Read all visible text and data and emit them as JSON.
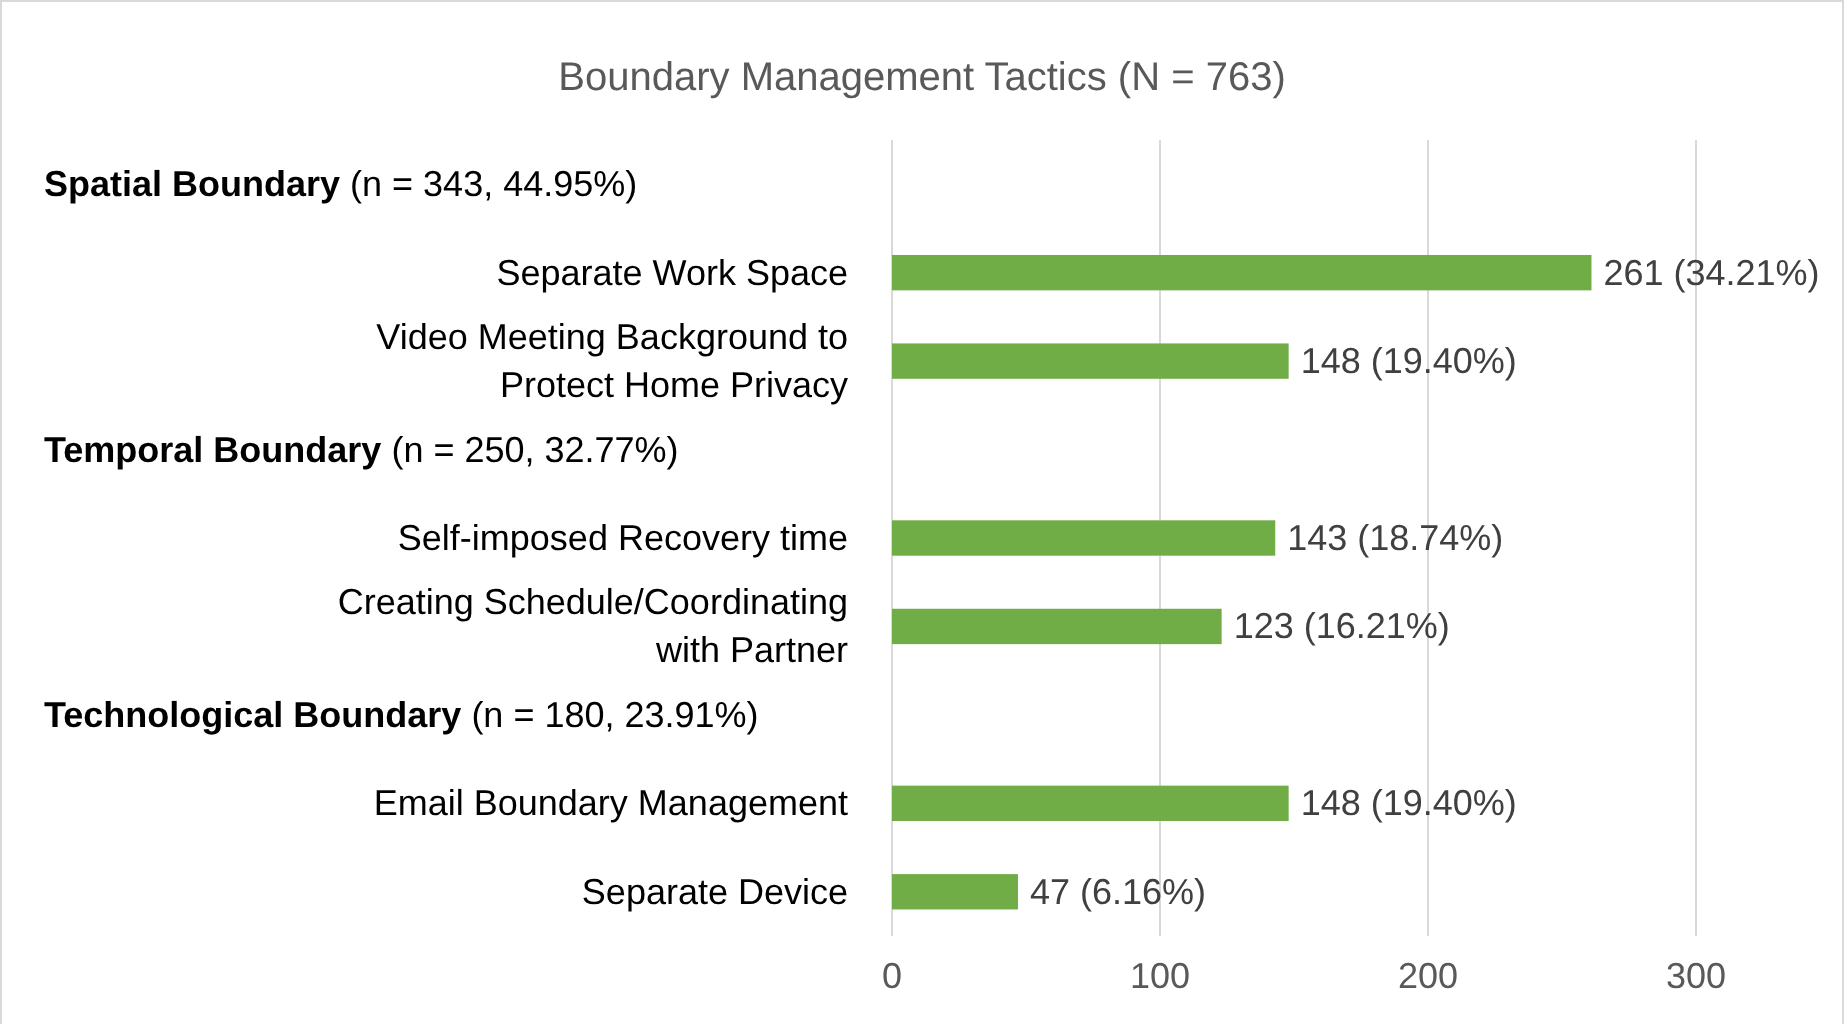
{
  "chart_data": {
    "type": "bar",
    "orientation": "horizontal",
    "title": "Boundary Management Tactics (N = 763)",
    "categories": [
      null,
      "Separate Work Space",
      "Video Meeting Background to Protect Home Privacy",
      null,
      "Self-imposed  Recovery time",
      "Creating Schedule/Coordinating with Partner",
      null,
      "Email Boundary Management",
      "Separate Device"
    ],
    "annotations": [
      "Spatial Boundary (n = 343, 44.95%)",
      "Temporal Boundary (n = 250, 32.77%)",
      "Technological Boundary (n = 180, 23.91%)"
    ],
    "values": [
      null,
      261,
      148,
      null,
      143,
      123,
      null,
      148,
      47
    ],
    "value_labels": [
      null,
      "261 (34.21%)",
      "148 (19.40%)",
      null,
      "143 (18.74%)",
      "123 (16.21%)",
      null,
      "148 (19.40%)",
      "47 (6.16%)"
    ],
    "color": "#70ad47",
    "xlim": [
      0,
      300
    ],
    "xticks": [
      0,
      100,
      200,
      300
    ],
    "grid": "x"
  }
}
